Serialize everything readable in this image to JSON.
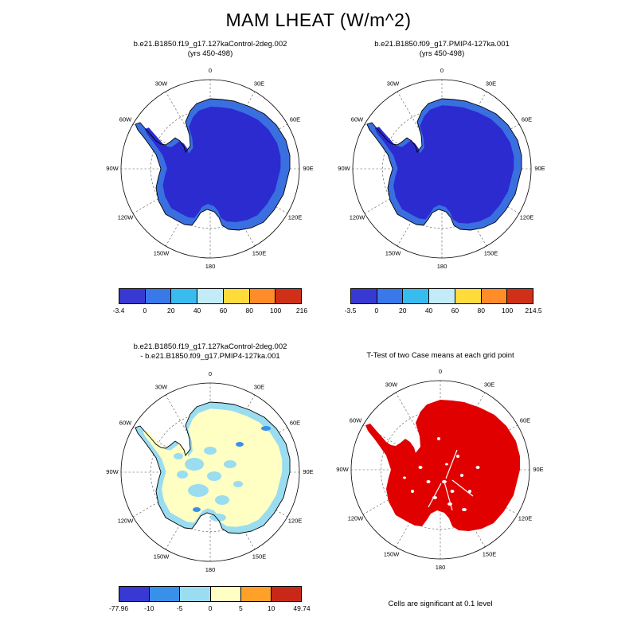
{
  "page_title": "MAM LHEAT (W/m^2)",
  "map_lon_labels": [
    "0",
    "30E",
    "60E",
    "90E",
    "120E",
    "150E",
    "180",
    "150W",
    "120W",
    "90W",
    "60W",
    "30W"
  ],
  "panels": [
    {
      "title_line1": "b.e21.B1850.f19_g17.127kaControl-2deg.002",
      "title_line2": "(yrs 450-498)",
      "map": {
        "fringe_color": "#3A6FE0",
        "interior_color": "#2B2BD0",
        "coast_color": "#000000"
      },
      "colorbar": {
        "colors": [
          "#3838D2",
          "#3878E8",
          "#38BCF0",
          "#C4EBF8",
          "#FFDC3C",
          "#FF8C28",
          "#D03018"
        ],
        "ticks": [
          "-3.4",
          "0",
          "20",
          "40",
          "60",
          "80",
          "100",
          "216"
        ]
      }
    },
    {
      "title_line1": "b.e21.B1850.f09_g17.PMIP4-127ka.001",
      "title_line2": "(yrs 450-498)",
      "map": {
        "fringe_color": "#3A6FE0",
        "interior_color": "#2B2BD0",
        "coast_color": "#000000"
      },
      "colorbar": {
        "colors": [
          "#3838D2",
          "#3878E8",
          "#38BCF0",
          "#C4EBF8",
          "#FFDC3C",
          "#FF8C28",
          "#D03018"
        ],
        "ticks": [
          "-3.5",
          "0",
          "20",
          "40",
          "60",
          "80",
          "100",
          "214.5"
        ]
      }
    },
    {
      "title_line1": "b.e21.B1850.f19_g17.127kaControl-2deg.002",
      "title_line2": "- b.e21.B1850.f09_g17.PMIP4-127ka.001",
      "map": {
        "fringe_color": "#9ADCF0",
        "interior_color": "#FFFFC4",
        "patch_color": "#9ADCF0",
        "patch_color2": "#3890E8",
        "coast_color": "#000000"
      },
      "colorbar": {
        "colors": [
          "#3838D2",
          "#3890E8",
          "#9ADCF0",
          "#FFFFC4",
          "#FFA028",
          "#C82818"
        ],
        "ticks": [
          "-77.96",
          "-10",
          "-5",
          "0",
          "5",
          "10",
          "49.74"
        ]
      }
    },
    {
      "title_line1": "T-Test of two Case means at each grid point",
      "map": {
        "significant_color": "#E00000",
        "non_significant_color": "#FFFFFF"
      },
      "caption": "Cells are significant at 0.1 level"
    }
  ],
  "chart_data": [
    {
      "type": "heatmap",
      "panel": "top-left",
      "title": "b.e21.B1850.f19_g17.127kaControl-2deg.002 (yrs 450-498)",
      "variable": "MAM LHEAT",
      "units": "W/m^2",
      "projection": "south polar stereographic, Antarctica, lon grid every 30 deg",
      "levels": [
        -3.4,
        0,
        20,
        40,
        60,
        80,
        100,
        216
      ],
      "reading": "continental interior in lowest bin (-3.4 to 0, dark blue); coastal fringe 0 to 20 (medium blue); ocean unshaded"
    },
    {
      "type": "heatmap",
      "panel": "top-right",
      "title": "b.e21.B1850.f09_g17.PMIP4-127ka.001 (yrs 450-498)",
      "variable": "MAM LHEAT",
      "units": "W/m^2",
      "projection": "south polar stereographic, Antarctica, lon grid every 30 deg",
      "levels": [
        -3.5,
        0,
        20,
        40,
        60,
        80,
        100,
        214.5
      ],
      "reading": "continental interior in lowest bin (-3.5 to 0, dark blue); thinner coastal fringe 0 to 20 (medium blue)"
    },
    {
      "type": "heatmap",
      "panel": "bottom-left",
      "title": "b.e21.B1850.f19_g17.127kaControl-2deg.002 minus b.e21.B1850.f09_g17.PMIP4-127ka.001",
      "variable": "MAM LHEAT difference",
      "units": "W/m^2",
      "levels": [
        -77.96,
        -10,
        -5,
        0,
        5,
        10,
        49.74
      ],
      "reading": "mostly 0 to 5 (pale yellow) with scattered -5 to 0 patches (light blue) and stronger negative values along parts of the coast"
    },
    {
      "type": "heatmap",
      "panel": "bottom-right",
      "title": "T-Test of two Case means at each grid point",
      "reading": "nearly all of Antarctica shaded red (significant) with small white non-significant speckles",
      "note": "Cells are significant at 0.1 level"
    }
  ]
}
